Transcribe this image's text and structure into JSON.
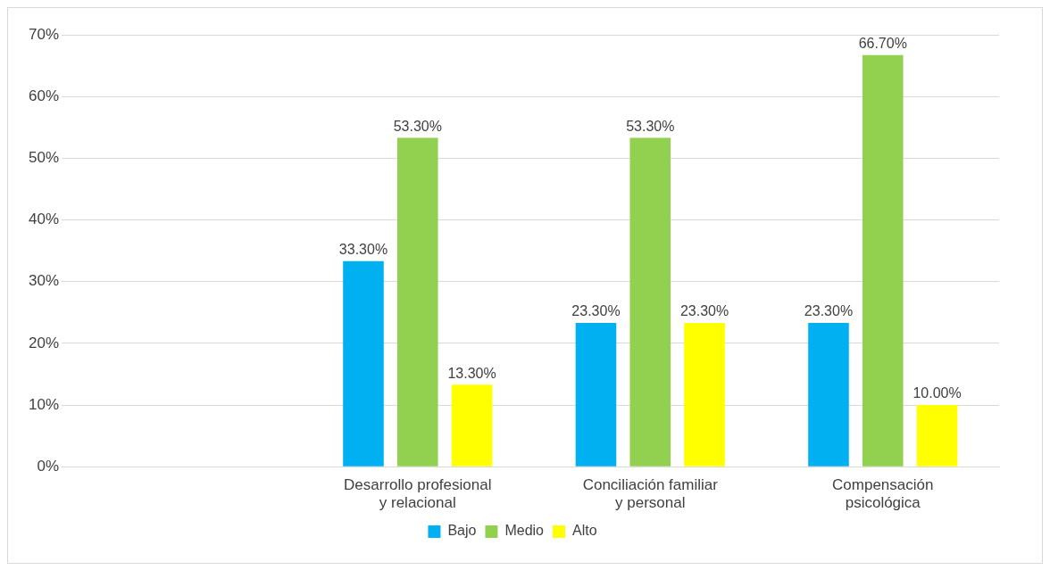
{
  "chart_data": {
    "type": "bar",
    "categories": [
      null,
      "Desarrollo profesional y relacional",
      "Conciliación familiar y personal",
      "Compensación psicológica"
    ],
    "series": [
      {
        "name": "Bajo",
        "color": "#00b0f0",
        "values": [
          null,
          33.3,
          23.3,
          23.3
        ],
        "value_labels": [
          null,
          "33.30%",
          "23.30%",
          "23.30%"
        ]
      },
      {
        "name": "Medio",
        "color": "#92d050",
        "values": [
          null,
          53.3,
          53.3,
          66.7
        ],
        "value_labels": [
          null,
          "53.30%",
          "53.30%",
          "66.70%"
        ]
      },
      {
        "name": "Alto",
        "color": "#ffff00",
        "values": [
          null,
          13.3,
          23.3,
          10.0
        ],
        "value_labels": [
          null,
          "13.30%",
          "23.30%",
          "10.00%"
        ]
      }
    ],
    "ylim": [
      0,
      70
    ],
    "yticks": [
      {
        "value": 0,
        "label": "0%"
      },
      {
        "value": 10,
        "label": "10%"
      },
      {
        "value": 20,
        "label": "20%"
      },
      {
        "value": 30,
        "label": "30%"
      },
      {
        "value": 40,
        "label": "40%"
      },
      {
        "value": 50,
        "label": "50%"
      },
      {
        "value": 60,
        "label": "60%"
      },
      {
        "value": 70,
        "label": "70%"
      }
    ],
    "grid": "y",
    "legend": "bottom"
  }
}
